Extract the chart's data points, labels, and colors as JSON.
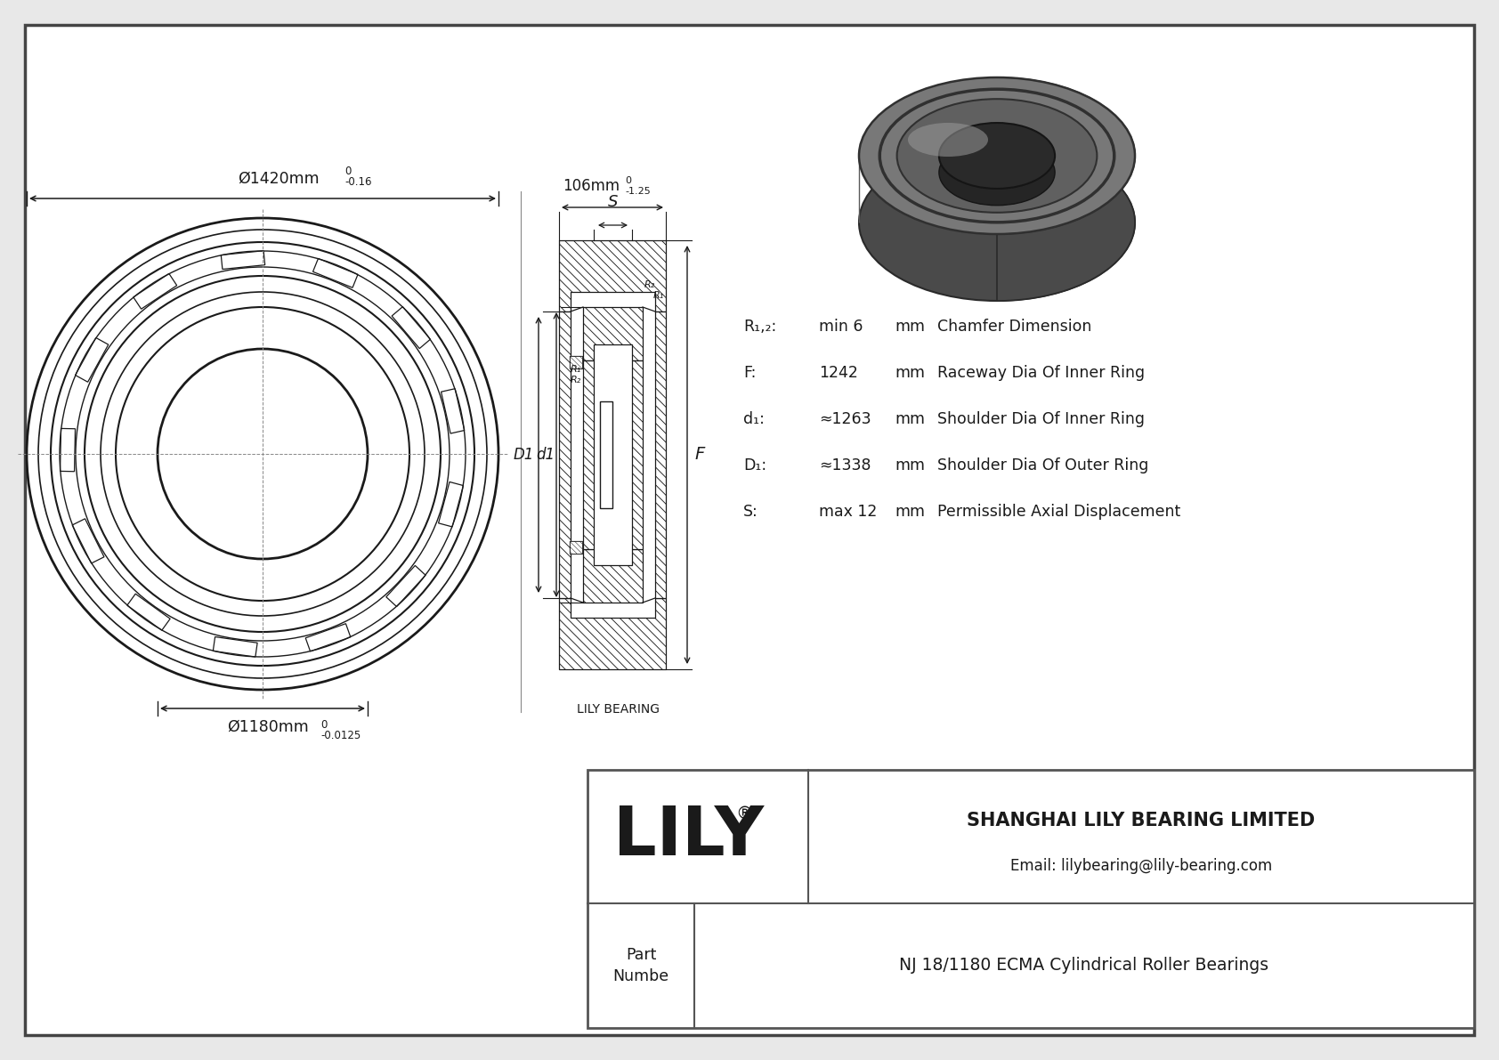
{
  "bg_color": "#e8e8e8",
  "drawing_bg": "#ffffff",
  "title": "NJ 18/1180 ECMA Cylindrical Roller Bearings",
  "company": "SHANGHAI LILY BEARING LIMITED",
  "email": "Email: lilybearing@lily-bearing.com",
  "part_label": "Part\nNumbe",
  "lily_text": "LILY",
  "lily_bearing_label": "LILY BEARING",
  "dim_outer": "Ø1420mm",
  "dim_outer_tol_top": "0",
  "dim_outer_tol_bot": "-0.16",
  "dim_inner": "Ø1180mm",
  "dim_inner_tol_top": "0",
  "dim_inner_tol_bot": "-0.0125",
  "dim_width": "106mm",
  "dim_width_tol_top": "0",
  "dim_width_tol_bot": "-1.25",
  "specs": [
    [
      "R₁,₂:",
      "min 6",
      "mm",
      "Chamfer Dimension"
    ],
    [
      "F:",
      "1242",
      "mm",
      "Raceway Dia Of Inner Ring"
    ],
    [
      "d₁:",
      "≈1263",
      "mm",
      "Shoulder Dia Of Inner Ring"
    ],
    [
      "D₁:",
      "≈1338",
      "mm",
      "Shoulder Dia Of Outer Ring"
    ],
    [
      "S:",
      "max 12",
      "mm",
      "Permissible Axial Displacement"
    ]
  ],
  "line_color": "#1a1a1a",
  "label_S": "S",
  "label_D1": "D1",
  "label_d1": "d1",
  "label_F": "F",
  "label_R1u": "R₁",
  "label_R2u": "R₂"
}
